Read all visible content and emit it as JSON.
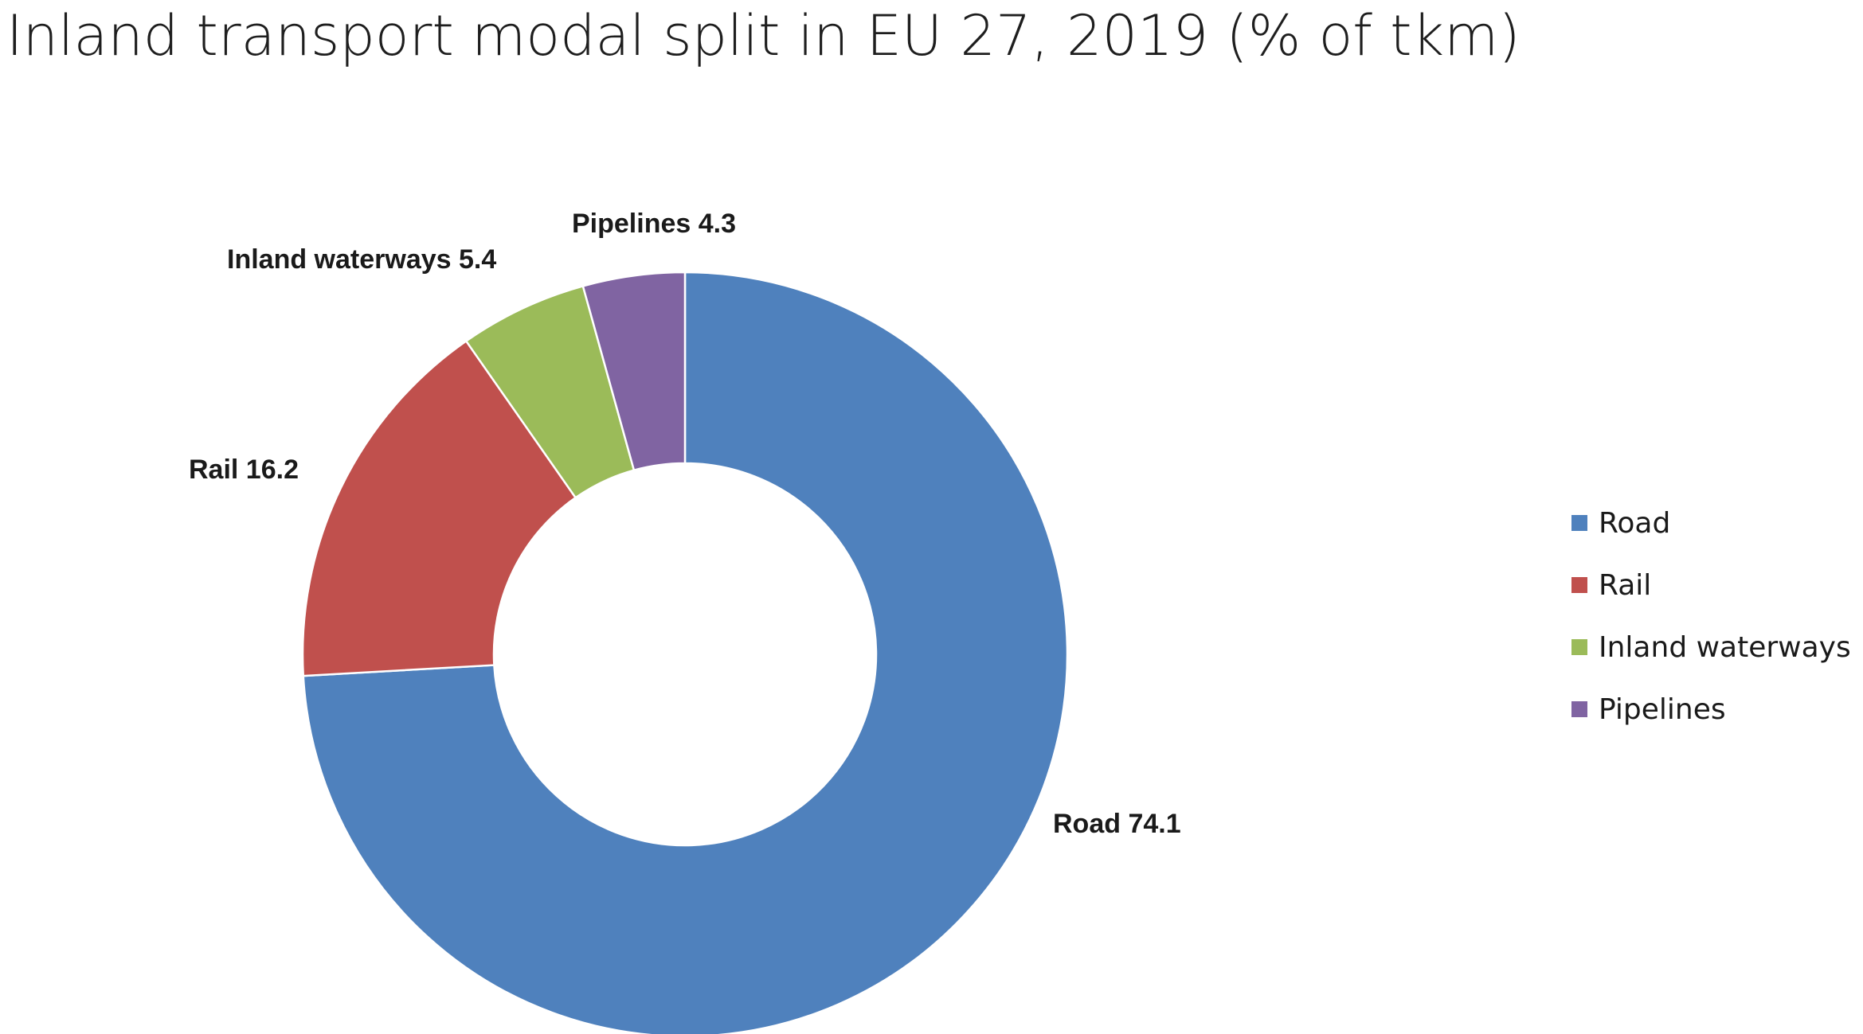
{
  "page": {
    "title": "Inland transport modal split in EU 27, 2019 (% of tkm)"
  },
  "chart_data": {
    "type": "pie",
    "title": "Inland transport modal split in EU 27, 2019 (% of tkm)",
    "donut": true,
    "categories": [
      "Road",
      "Rail",
      "Inland waterways",
      "Pipelines"
    ],
    "values": [
      74.1,
      16.2,
      5.4,
      4.3
    ],
    "colors": [
      "#4f81bd",
      "#c0504d",
      "#9bbb59",
      "#8064a2"
    ],
    "data_labels": [
      "Road 74.1",
      "Rail 16.2",
      "Inland waterways 5.4",
      "Pipelines 4.3"
    ],
    "legend": {
      "position": "right",
      "entries": [
        "Road",
        "Rail",
        "Inland waterways",
        "Pipelines"
      ]
    }
  }
}
